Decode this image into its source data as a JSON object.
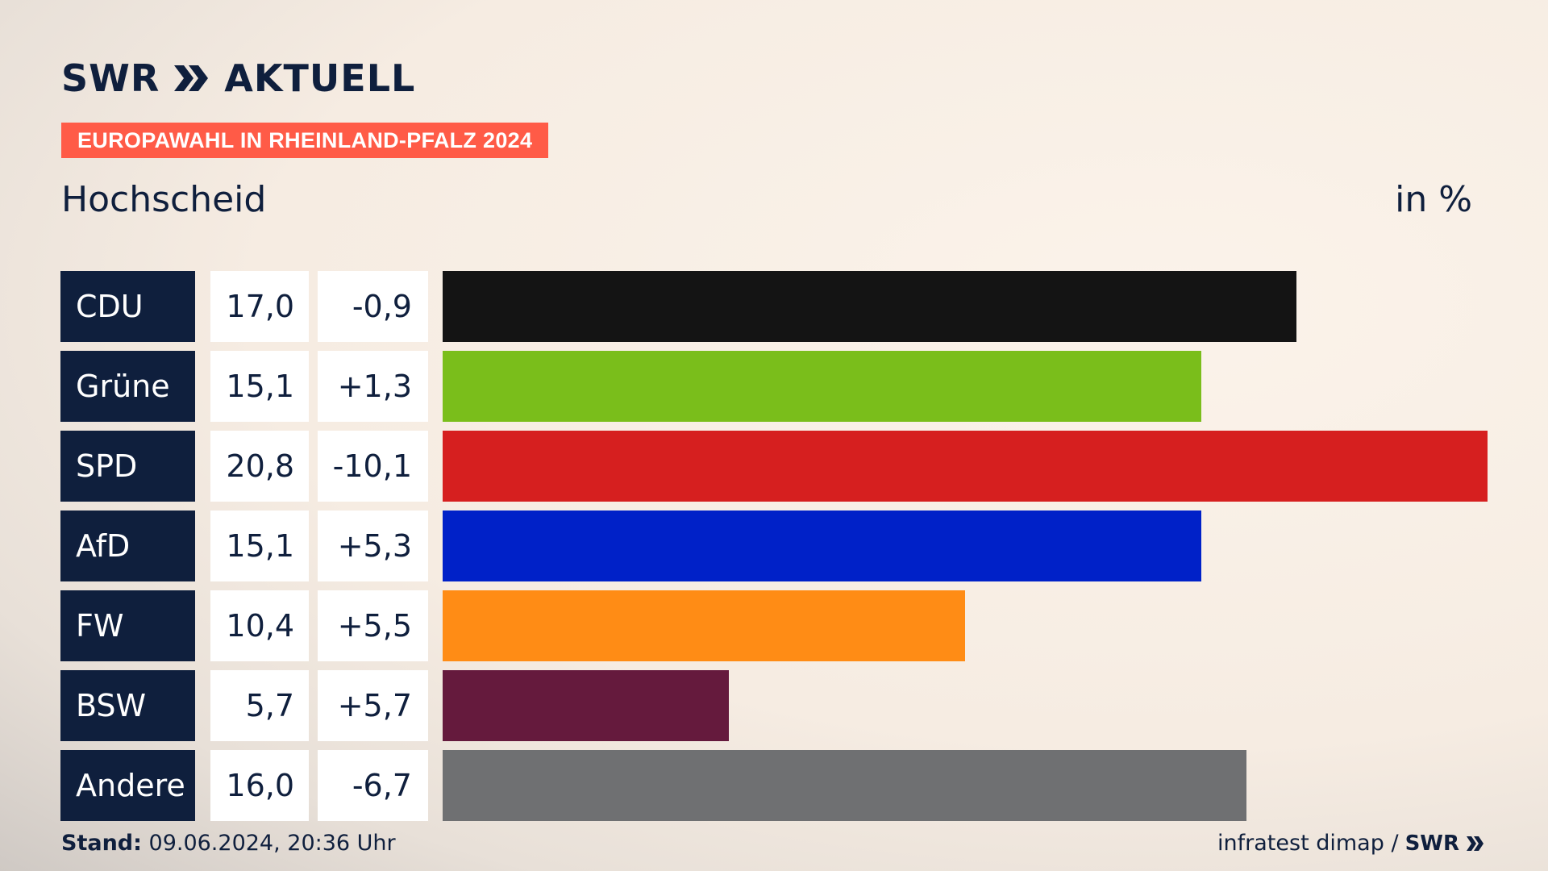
{
  "brand": {
    "swr": "SWR",
    "aktuell": "AKTUELL"
  },
  "badge": "EUROPAWAHL IN RHEINLAND-PFALZ 2024",
  "title": "Hochscheid",
  "unit": "in %",
  "footer": {
    "stand_label": "Stand:",
    "stand_value": "09.06.2024, 20:36 Uhr",
    "source": "infratest dimap /",
    "source_brand": "SWR"
  },
  "colors": {
    "CDU": "#141414",
    "Grüne": "#7abe1b",
    "SPD": "#d61f1f",
    "AfD": "#0021c8",
    "FW": "#ff8c15",
    "BSW": "#651a3d",
    "Andere": "#6f7072"
  },
  "chart_data": {
    "type": "bar",
    "orientation": "horizontal",
    "categories": [
      "CDU",
      "Grüne",
      "SPD",
      "AfD",
      "FW",
      "BSW",
      "Andere"
    ],
    "values": [
      17.0,
      15.1,
      20.8,
      15.1,
      10.4,
      5.7,
      16.0
    ],
    "value_labels": [
      "17,0",
      "15,1",
      "20,8",
      "15,1",
      "10,4",
      "5,7",
      "16,0"
    ],
    "diffs": [
      -0.9,
      1.3,
      -10.1,
      5.3,
      5.5,
      5.7,
      -6.7
    ],
    "diff_labels": [
      "-0,9",
      "+1,3",
      "-10,1",
      "+5,3",
      "+5,5",
      "+5,7",
      "-6,7"
    ],
    "xlim": [
      0,
      20.8
    ]
  }
}
